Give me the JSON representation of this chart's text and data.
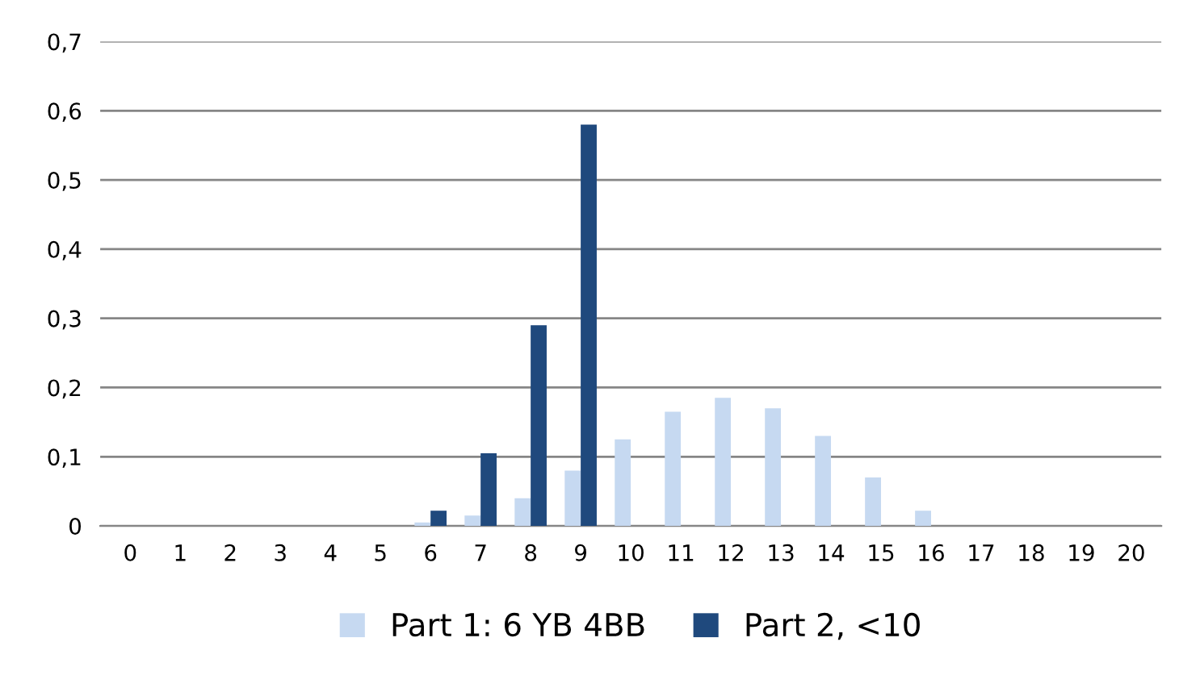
{
  "chart_data": {
    "type": "bar",
    "categories": [
      "0",
      "1",
      "2",
      "3",
      "4",
      "5",
      "6",
      "7",
      "8",
      "9",
      "10",
      "11",
      "12",
      "13",
      "14",
      "15",
      "16",
      "17",
      "18",
      "19",
      "20"
    ],
    "series": [
      {
        "name": "Part 1: 6 YB 4BB",
        "color": "#c6d9f1",
        "values": [
          0,
          0,
          0,
          0,
          0,
          0,
          0.005,
          0.015,
          0.04,
          0.08,
          0.125,
          0.165,
          0.185,
          0.17,
          0.13,
          0.07,
          0.022,
          0,
          0,
          0,
          0
        ]
      },
      {
        "name": "Part 2, <10",
        "color": "#1f497d",
        "values": [
          0,
          0,
          0,
          0,
          0,
          0,
          0.022,
          0.105,
          0.29,
          0.58,
          0,
          0,
          0,
          0,
          0,
          0,
          0,
          0,
          0,
          0,
          0
        ]
      }
    ],
    "ylim": [
      0,
      0.7
    ],
    "yticks": [
      0,
      {
        "value": 0.1,
        "label": "0,1"
      },
      {
        "value": 0.2,
        "label": "0,2"
      },
      {
        "value": 0.3,
        "label": "0,3"
      },
      {
        "value": 0.4,
        "label": "0,4"
      },
      {
        "value": 0.5,
        "label": "0,5"
      },
      {
        "value": 0.6,
        "label": "0,6"
      },
      {
        "value": 0.7,
        "label": "0,7"
      }
    ],
    "grid": "y",
    "legend": "bottom"
  }
}
